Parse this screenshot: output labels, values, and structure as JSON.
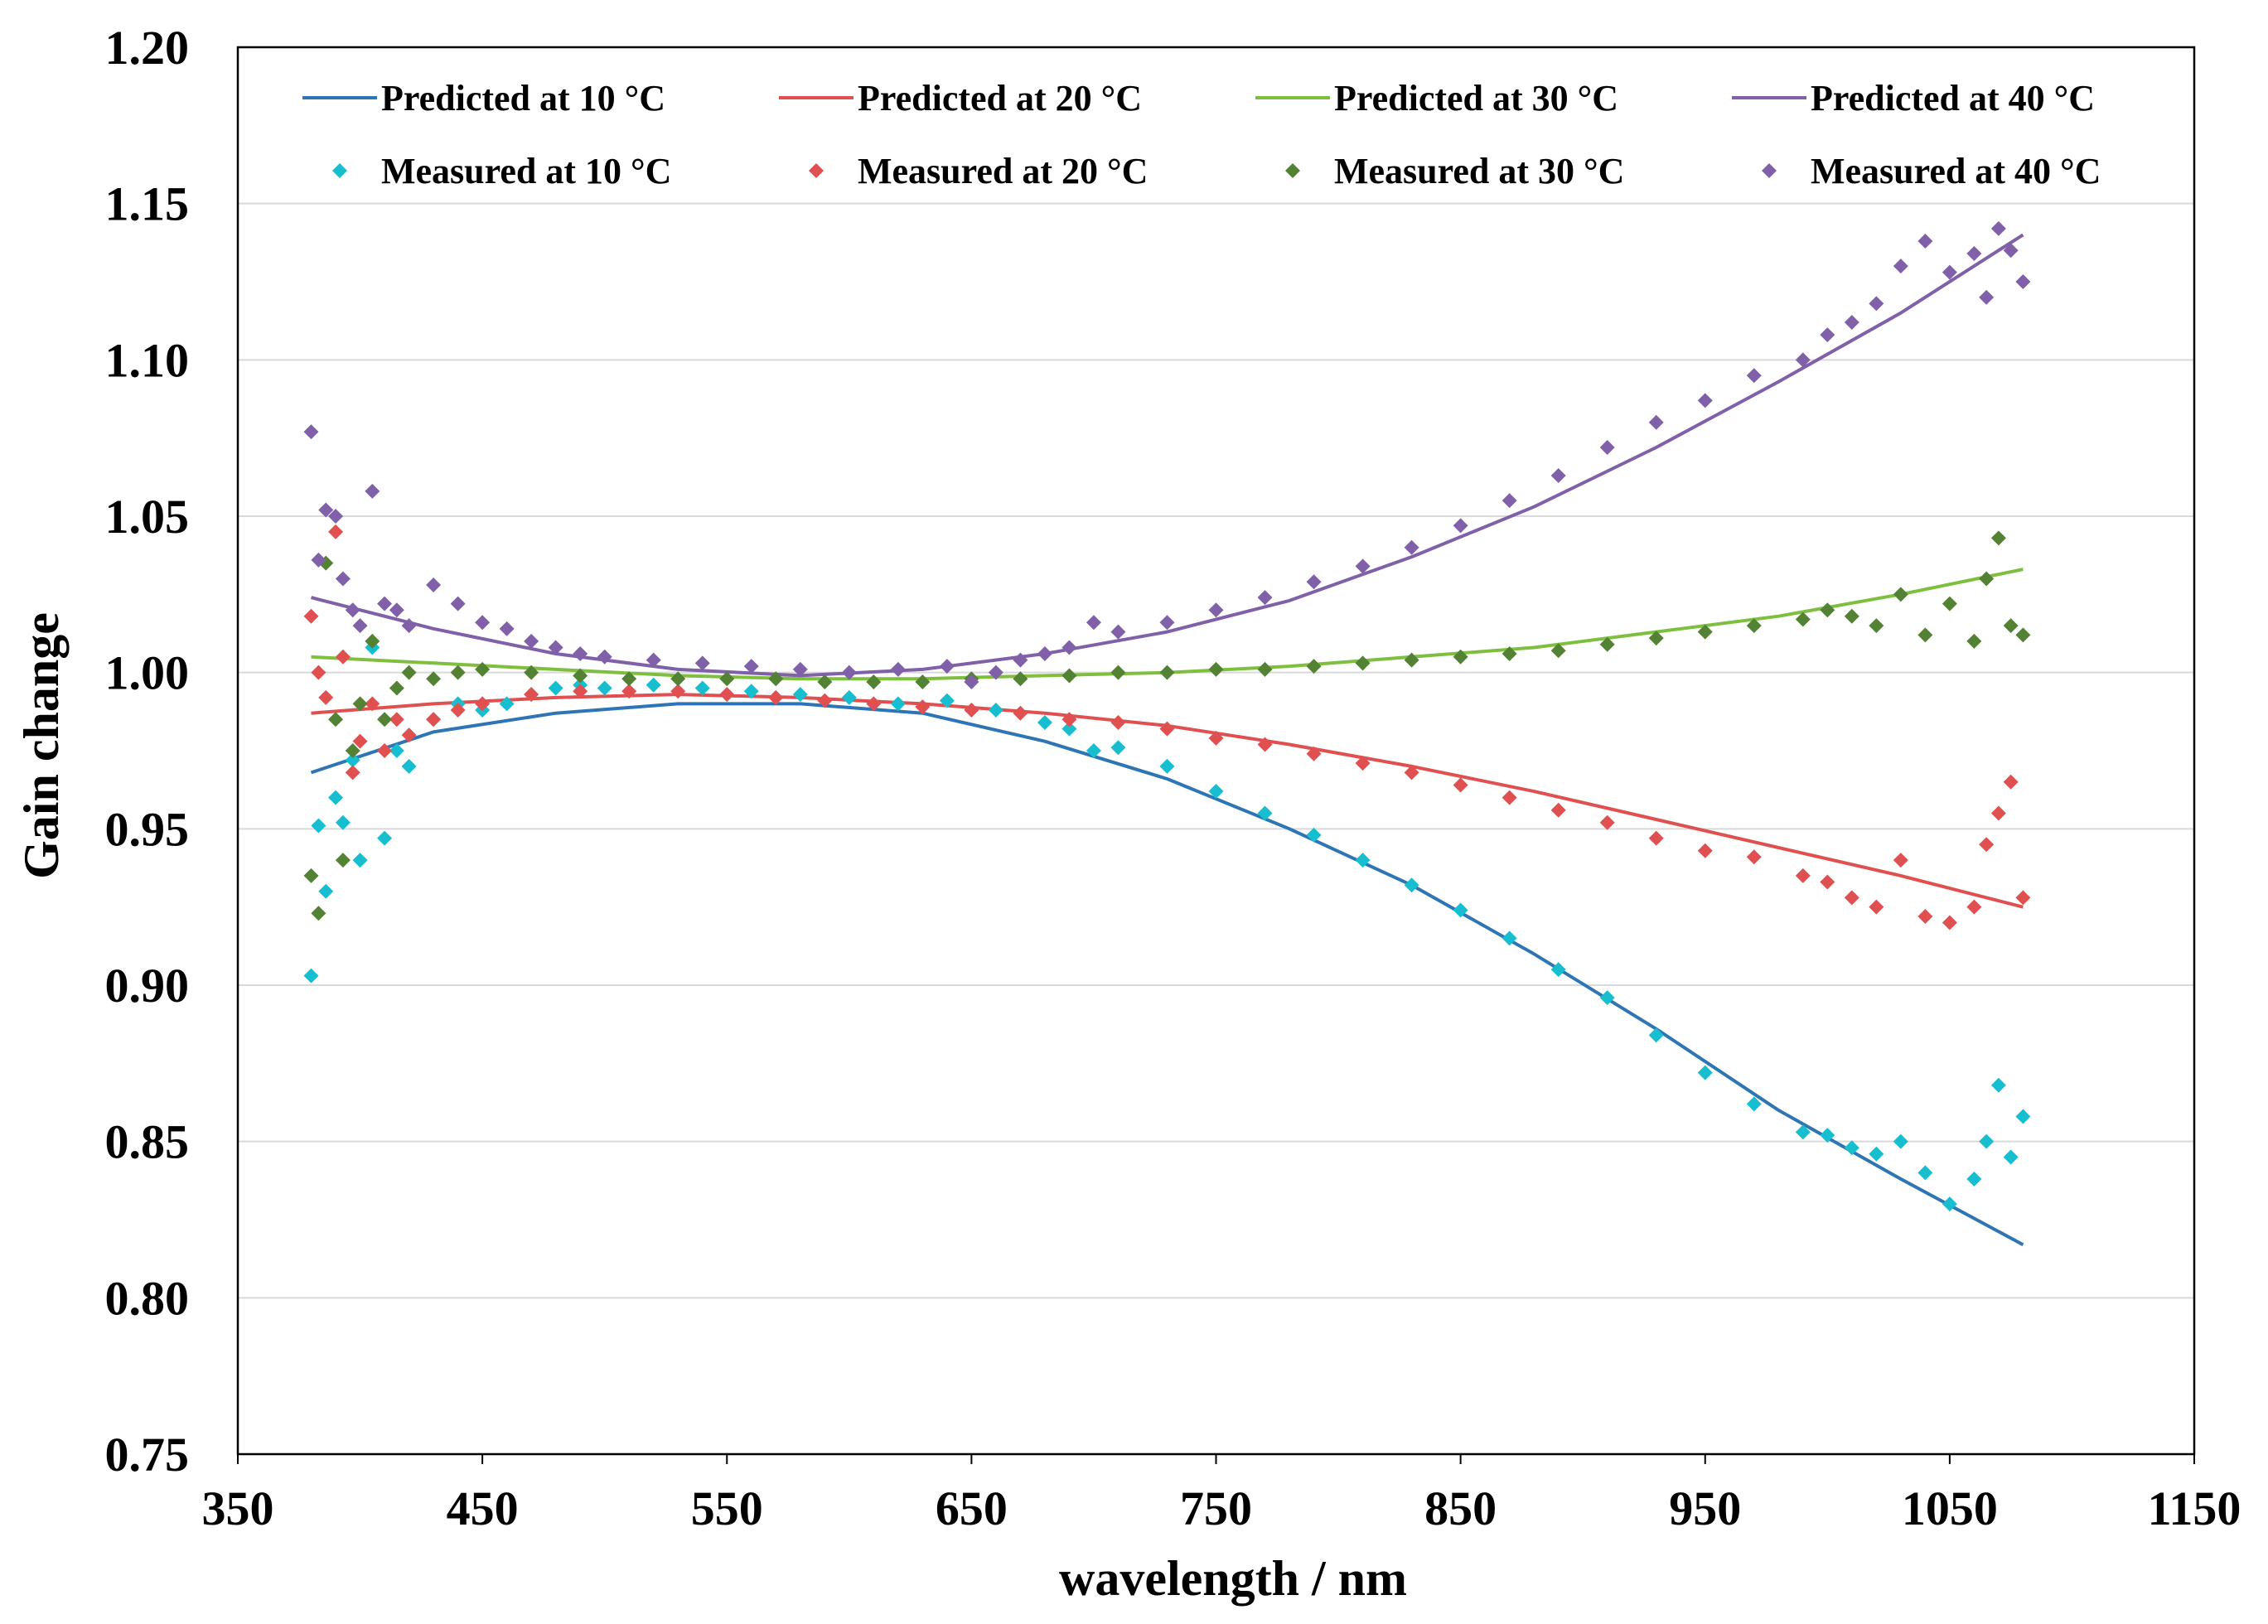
{
  "chart_data": {
    "type": "line",
    "xlabel": "wavelength / nm",
    "ylabel": "Gain change",
    "xlim": [
      350,
      1150
    ],
    "ylim": [
      0.75,
      1.2
    ],
    "xticks": [
      350,
      450,
      550,
      650,
      750,
      850,
      950,
      1050,
      1150
    ],
    "yticks": [
      0.75,
      0.8,
      0.85,
      0.9,
      0.95,
      1.0,
      1.05,
      1.1,
      1.15,
      1.2
    ],
    "xtick_labels": [
      "350",
      "450",
      "550",
      "650",
      "750",
      "850",
      "950",
      "1050",
      "1150"
    ],
    "ytick_labels": [
      "0.75",
      "0.80",
      "0.85",
      "0.90",
      "0.95",
      "1.00",
      "1.05",
      "1.10",
      "1.15",
      "1.20"
    ],
    "grid": true,
    "legend_position": "top",
    "series": [
      {
        "name": "Predicted at 10 °C",
        "kind": "line",
        "color": "#2e75b6",
        "x": [
          380,
          430,
          480,
          530,
          580,
          630,
          680,
          730,
          780,
          830,
          880,
          930,
          980,
          1030,
          1080
        ],
        "y": [
          0.968,
          0.981,
          0.987,
          0.99,
          0.99,
          0.987,
          0.978,
          0.966,
          0.95,
          0.932,
          0.91,
          0.886,
          0.86,
          0.838,
          0.817
        ]
      },
      {
        "name": "Predicted at 20 °C",
        "kind": "line",
        "color": "#e05050",
        "x": [
          380,
          430,
          480,
          530,
          580,
          630,
          680,
          730,
          780,
          830,
          880,
          930,
          980,
          1030,
          1080
        ],
        "y": [
          0.987,
          0.99,
          0.992,
          0.993,
          0.992,
          0.99,
          0.987,
          0.983,
          0.977,
          0.97,
          0.962,
          0.953,
          0.944,
          0.935,
          0.925
        ]
      },
      {
        "name": "Predicted at 30 °C",
        "kind": "line",
        "color": "#7fbf3f",
        "x": [
          380,
          430,
          480,
          530,
          580,
          630,
          680,
          730,
          780,
          830,
          880,
          930,
          980,
          1030,
          1080
        ],
        "y": [
          1.005,
          1.003,
          1.001,
          0.999,
          0.998,
          0.998,
          0.999,
          1.0,
          1.002,
          1.005,
          1.008,
          1.013,
          1.018,
          1.025,
          1.033
        ]
      },
      {
        "name": "Predicted at 40 °C",
        "kind": "line",
        "color": "#8060a8",
        "x": [
          380,
          430,
          480,
          530,
          580,
          630,
          680,
          730,
          780,
          830,
          880,
          930,
          980,
          1030,
          1080
        ],
        "y": [
          1.024,
          1.014,
          1.006,
          1.001,
          0.999,
          1.001,
          1.006,
          1.013,
          1.023,
          1.037,
          1.053,
          1.072,
          1.093,
          1.115,
          1.14
        ]
      },
      {
        "name": "Measured at 10 °C",
        "kind": "scatter",
        "color": "#17becf",
        "x": [
          380,
          383,
          386,
          390,
          393,
          397,
          400,
          405,
          410,
          415,
          420,
          430,
          440,
          450,
          460,
          470,
          480,
          490,
          500,
          520,
          540,
          560,
          580,
          600,
          620,
          640,
          660,
          680,
          690,
          700,
          710,
          730,
          750,
          770,
          790,
          810,
          830,
          850,
          870,
          890,
          910,
          930,
          950,
          970,
          990,
          1000,
          1010,
          1020,
          1030,
          1040,
          1050,
          1060,
          1065,
          1070,
          1075,
          1080
        ],
        "y": [
          0.903,
          0.951,
          0.93,
          0.96,
          0.952,
          0.972,
          0.94,
          1.008,
          0.947,
          0.975,
          0.97,
          0.985,
          0.99,
          0.988,
          0.99,
          0.993,
          0.995,
          0.996,
          0.995,
          0.996,
          0.995,
          0.994,
          0.993,
          0.992,
          0.99,
          0.991,
          0.988,
          0.984,
          0.982,
          0.975,
          0.976,
          0.97,
          0.962,
          0.955,
          0.948,
          0.94,
          0.932,
          0.924,
          0.915,
          0.905,
          0.896,
          0.884,
          0.872,
          0.862,
          0.853,
          0.852,
          0.848,
          0.846,
          0.85,
          0.84,
          0.83,
          0.838,
          0.85,
          0.868,
          0.845,
          0.858
        ]
      },
      {
        "name": "Measured at 20 °C",
        "kind": "scatter",
        "color": "#e05050",
        "x": [
          380,
          383,
          386,
          390,
          393,
          397,
          400,
          405,
          410,
          415,
          420,
          430,
          440,
          450,
          470,
          490,
          510,
          530,
          550,
          570,
          590,
          610,
          630,
          650,
          670,
          690,
          710,
          730,
          750,
          770,
          790,
          810,
          830,
          850,
          870,
          890,
          910,
          930,
          950,
          970,
          990,
          1000,
          1010,
          1020,
          1030,
          1040,
          1050,
          1060,
          1065,
          1070,
          1075,
          1080
        ],
        "y": [
          1.018,
          1.0,
          0.992,
          1.045,
          1.005,
          0.968,
          0.978,
          0.99,
          0.975,
          0.985,
          0.98,
          0.985,
          0.988,
          0.99,
          0.993,
          0.994,
          0.994,
          0.994,
          0.993,
          0.992,
          0.991,
          0.99,
          0.989,
          0.988,
          0.987,
          0.985,
          0.984,
          0.982,
          0.979,
          0.977,
          0.974,
          0.971,
          0.968,
          0.964,
          0.96,
          0.956,
          0.952,
          0.947,
          0.943,
          0.941,
          0.935,
          0.933,
          0.928,
          0.925,
          0.94,
          0.922,
          0.92,
          0.925,
          0.945,
          0.955,
          0.965,
          0.928
        ]
      },
      {
        "name": "Measured at 30 °C",
        "kind": "scatter",
        "color": "#548235",
        "x": [
          380,
          383,
          386,
          390,
          393,
          397,
          400,
          405,
          410,
          415,
          420,
          430,
          440,
          450,
          470,
          490,
          510,
          530,
          550,
          570,
          590,
          610,
          630,
          650,
          670,
          690,
          710,
          730,
          750,
          770,
          790,
          810,
          830,
          850,
          870,
          890,
          910,
          930,
          950,
          970,
          990,
          1000,
          1010,
          1020,
          1030,
          1040,
          1050,
          1060,
          1065,
          1070,
          1075,
          1080
        ],
        "y": [
          0.935,
          0.923,
          1.035,
          0.985,
          0.94,
          0.975,
          0.99,
          1.01,
          0.985,
          0.995,
          1.0,
          0.998,
          1.0,
          1.001,
          1.0,
          0.999,
          0.998,
          0.998,
          0.998,
          0.998,
          0.997,
          0.997,
          0.997,
          0.998,
          0.998,
          0.999,
          1.0,
          1.0,
          1.001,
          1.001,
          1.002,
          1.003,
          1.004,
          1.005,
          1.006,
          1.007,
          1.009,
          1.011,
          1.013,
          1.015,
          1.017,
          1.02,
          1.018,
          1.015,
          1.025,
          1.012,
          1.022,
          1.01,
          1.03,
          1.043,
          1.015,
          1.012
        ]
      },
      {
        "name": "Measured at 40 °C",
        "kind": "scatter",
        "color": "#8060a8",
        "x": [
          380,
          383,
          386,
          390,
          393,
          397,
          400,
          405,
          410,
          415,
          420,
          430,
          440,
          450,
          460,
          470,
          480,
          490,
          500,
          520,
          540,
          560,
          580,
          600,
          620,
          640,
          650,
          660,
          670,
          680,
          690,
          700,
          710,
          730,
          750,
          770,
          790,
          810,
          830,
          850,
          870,
          890,
          910,
          930,
          950,
          970,
          990,
          1000,
          1010,
          1020,
          1030,
          1040,
          1050,
          1060,
          1065,
          1070,
          1075,
          1080
        ],
        "y": [
          1.077,
          1.036,
          1.052,
          1.05,
          1.03,
          1.02,
          1.015,
          1.058,
          1.022,
          1.02,
          1.015,
          1.028,
          1.022,
          1.016,
          1.014,
          1.01,
          1.008,
          1.006,
          1.005,
          1.004,
          1.003,
          1.002,
          1.001,
          1.0,
          1.001,
          1.002,
          0.997,
          1.0,
          1.004,
          1.006,
          1.008,
          1.016,
          1.013,
          1.016,
          1.02,
          1.024,
          1.029,
          1.034,
          1.04,
          1.047,
          1.055,
          1.063,
          1.072,
          1.08,
          1.087,
          1.095,
          1.1,
          1.108,
          1.112,
          1.118,
          1.13,
          1.138,
          1.128,
          1.134,
          1.12,
          1.142,
          1.135,
          1.125
        ]
      }
    ]
  }
}
